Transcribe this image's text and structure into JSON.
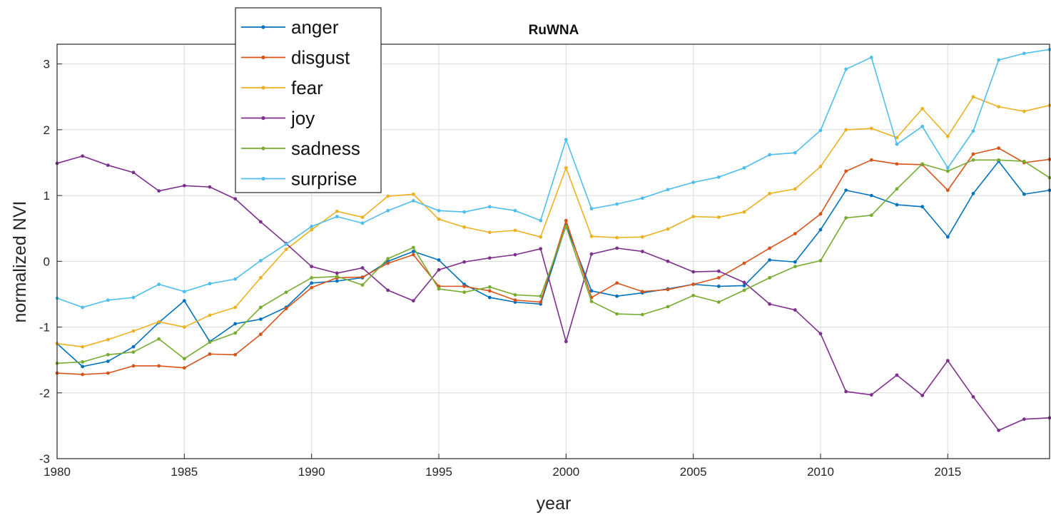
{
  "chart_data": {
    "type": "line",
    "title": "RuWNA",
    "xlabel": "year",
    "ylabel": "normalized NVI",
    "xlim": [
      1980,
      2019
    ],
    "ylim": [
      -3,
      3.3
    ],
    "xticks": [
      1980,
      1985,
      1990,
      1995,
      2000,
      2005,
      2010,
      2015
    ],
    "yticks": [
      -3,
      -2,
      -1,
      0,
      1,
      2,
      3
    ],
    "grid": true,
    "legend_position": "top-left",
    "x": [
      1980,
      1981,
      1982,
      1983,
      1984,
      1985,
      1986,
      1987,
      1988,
      1989,
      1990,
      1991,
      1992,
      1993,
      1994,
      1995,
      1996,
      1997,
      1998,
      1999,
      2000,
      2001,
      2002,
      2003,
      2004,
      2005,
      2006,
      2007,
      2008,
      2009,
      2010,
      2011,
      2012,
      2013,
      2014,
      2015,
      2016,
      2017,
      2018,
      2019
    ],
    "series": [
      {
        "name": "anger",
        "color": "#0072BD",
        "values": [
          -1.25,
          -1.6,
          -1.52,
          -1.3,
          -0.93,
          -0.6,
          -1.22,
          -0.95,
          -0.88,
          -0.7,
          -0.33,
          -0.3,
          -0.25,
          0.0,
          0.15,
          0.02,
          -0.35,
          -0.55,
          -0.62,
          -0.65,
          0.55,
          -0.45,
          -0.53,
          -0.48,
          -0.42,
          -0.35,
          -0.38,
          -0.37,
          0.02,
          -0.01,
          0.48,
          1.08,
          1.0,
          0.86,
          0.83,
          0.37,
          1.03,
          1.52,
          1.02,
          1.08
        ]
      },
      {
        "name": "disgust",
        "color": "#D95319",
        "values": [
          -1.7,
          -1.72,
          -1.7,
          -1.59,
          -1.59,
          -1.62,
          -1.41,
          -1.42,
          -1.11,
          -0.72,
          -0.4,
          -0.25,
          -0.24,
          -0.03,
          0.1,
          -0.38,
          -0.38,
          -0.45,
          -0.59,
          -0.62,
          0.62,
          -0.55,
          -0.33,
          -0.46,
          -0.43,
          -0.35,
          -0.25,
          -0.03,
          0.2,
          0.42,
          0.72,
          1.37,
          1.54,
          1.48,
          1.47,
          1.08,
          1.63,
          1.72,
          1.5,
          1.55
        ]
      },
      {
        "name": "fear",
        "color": "#EDB120",
        "values": [
          -1.25,
          -1.3,
          -1.19,
          -1.06,
          -0.92,
          -1.0,
          -0.82,
          -0.7,
          -0.25,
          0.18,
          0.48,
          0.76,
          0.67,
          0.99,
          1.02,
          0.64,
          0.52,
          0.44,
          0.47,
          0.37,
          1.42,
          0.38,
          0.36,
          0.37,
          0.49,
          0.68,
          0.67,
          0.75,
          1.03,
          1.1,
          1.44,
          2.0,
          2.02,
          1.88,
          2.32,
          1.9,
          2.5,
          2.35,
          2.28,
          2.37
        ]
      },
      {
        "name": "joy",
        "color": "#7E2F8E",
        "values": [
          1.49,
          1.6,
          1.46,
          1.35,
          1.07,
          1.15,
          1.13,
          0.95,
          0.6,
          0.27,
          -0.08,
          -0.18,
          -0.1,
          -0.44,
          -0.6,
          -0.13,
          -0.01,
          0.05,
          0.1,
          0.19,
          -1.22,
          0.11,
          0.2,
          0.15,
          0.0,
          -0.16,
          -0.15,
          -0.32,
          -0.65,
          -0.74,
          -1.1,
          -1.98,
          -2.03,
          -1.73,
          -2.04,
          -1.51,
          -2.06,
          -2.57,
          -2.4,
          -2.38
        ]
      },
      {
        "name": "sadness",
        "color": "#77AC30",
        "values": [
          -1.55,
          -1.53,
          -1.42,
          -1.38,
          -1.18,
          -1.48,
          -1.23,
          -1.09,
          -0.7,
          -0.47,
          -0.25,
          -0.23,
          -0.36,
          0.04,
          0.21,
          -0.42,
          -0.47,
          -0.39,
          -0.51,
          -0.53,
          0.53,
          -0.61,
          -0.8,
          -0.81,
          -0.69,
          -0.52,
          -0.62,
          -0.44,
          -0.25,
          -0.08,
          0.01,
          0.66,
          0.7,
          1.1,
          1.48,
          1.37,
          1.54,
          1.54,
          1.52,
          1.27
        ]
      },
      {
        "name": "surprise",
        "color": "#4DBEEE",
        "values": [
          -0.56,
          -0.7,
          -0.59,
          -0.55,
          -0.35,
          -0.46,
          -0.34,
          -0.27,
          0.01,
          0.26,
          0.53,
          0.68,
          0.58,
          0.77,
          0.92,
          0.77,
          0.75,
          0.83,
          0.77,
          0.62,
          1.85,
          0.8,
          0.87,
          0.96,
          1.09,
          1.2,
          1.28,
          1.42,
          1.62,
          1.65,
          1.99,
          2.92,
          3.1,
          1.78,
          2.05,
          1.42,
          1.98,
          3.06,
          3.16,
          3.22
        ]
      }
    ]
  }
}
